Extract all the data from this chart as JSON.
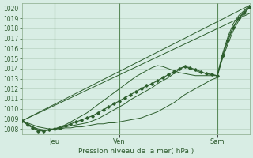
{
  "title": "",
  "xlabel": "Pression niveau de la mer( hPa )",
  "ylabel": "",
  "bg_color": "#d8ede4",
  "grid_color": "#b0ccb8",
  "line_color": "#2d5e2d",
  "ylim": [
    1007.5,
    1020.5
  ],
  "xlim": [
    0,
    84
  ],
  "xtick_positions": [
    12,
    36,
    72
  ],
  "xtick_labels": [
    "Jeu",
    "Ven",
    "Sam"
  ],
  "ytick_positions": [
    1008,
    1009,
    1010,
    1011,
    1012,
    1013,
    1014,
    1015,
    1016,
    1017,
    1018,
    1019,
    1020
  ],
  "line1_straight": {
    "x": [
      0,
      84
    ],
    "y": [
      1008.8,
      1019.5
    ]
  },
  "line2_straight": {
    "x": [
      0,
      84
    ],
    "y": [
      1008.8,
      1020.3
    ]
  },
  "line3_straight": {
    "x": [
      0,
      84
    ],
    "y": [
      1008.8,
      1018.8
    ]
  },
  "line4_straight": {
    "x": [
      0,
      84
    ],
    "y": [
      1008.8,
      1019.0
    ]
  },
  "line_bumpy": {
    "x": [
      0,
      2,
      4,
      6,
      8,
      10,
      12,
      14,
      16,
      18,
      20,
      22,
      24,
      26,
      28,
      30,
      32,
      34,
      36,
      38,
      40,
      42,
      44,
      46,
      48,
      50,
      52,
      54,
      56,
      58,
      60,
      62,
      64,
      66,
      68,
      70,
      72,
      74,
      76,
      78,
      80,
      82,
      84
    ],
    "y": [
      1008.8,
      1008.5,
      1008.2,
      1008.0,
      1007.9,
      1007.9,
      1008.0,
      1008.1,
      1008.2,
      1008.3,
      1008.4,
      1008.5,
      1008.6,
      1008.8,
      1009.0,
      1009.3,
      1009.6,
      1009.9,
      1010.2,
      1010.5,
      1010.9,
      1011.2,
      1011.5,
      1011.8,
      1012.1,
      1012.5,
      1012.8,
      1013.1,
      1013.5,
      1013.9,
      1014.2,
      1014.0,
      1013.8,
      1013.6,
      1013.5,
      1013.4,
      1013.3,
      1015.0,
      1016.5,
      1017.8,
      1018.8,
      1019.5,
      1020.1
    ]
  },
  "line_flat_long": {
    "x": [
      0,
      2,
      4,
      6,
      8,
      10,
      12,
      14,
      16,
      18,
      20,
      22,
      24,
      26,
      28,
      30,
      32,
      34,
      36,
      38,
      40,
      42,
      44,
      46,
      48,
      50,
      52,
      54,
      56,
      58,
      60,
      62,
      64,
      66,
      68,
      70,
      72,
      74,
      76,
      78,
      80,
      82,
      84
    ],
    "y": [
      1008.8,
      1008.6,
      1008.4,
      1008.2,
      1008.1,
      1008.0,
      1008.0,
      1008.0,
      1008.1,
      1008.1,
      1008.2,
      1008.2,
      1008.3,
      1008.4,
      1008.5,
      1008.5,
      1008.6,
      1008.6,
      1008.7,
      1008.8,
      1008.9,
      1009.0,
      1009.1,
      1009.3,
      1009.5,
      1009.7,
      1010.0,
      1010.3,
      1010.6,
      1011.0,
      1011.4,
      1011.7,
      1012.0,
      1012.3,
      1012.6,
      1012.9,
      1013.1,
      1015.2,
      1017.0,
      1018.2,
      1019.1,
      1019.7,
      1020.2
    ]
  },
  "line_steep": {
    "x": [
      0,
      2,
      4,
      6,
      8,
      10,
      12,
      14,
      16,
      18,
      20,
      22,
      24,
      26,
      28,
      30,
      32,
      34,
      36,
      38,
      40,
      42,
      44,
      46,
      48,
      50,
      52,
      54,
      56,
      58,
      60,
      62,
      64,
      66,
      68,
      70,
      72,
      74,
      76,
      78,
      80,
      82,
      84
    ],
    "y": [
      1008.8,
      1008.5,
      1008.2,
      1007.9,
      1007.8,
      1007.9,
      1008.0,
      1008.2,
      1008.4,
      1008.7,
      1009.0,
      1009.3,
      1009.6,
      1010.0,
      1010.4,
      1010.8,
      1011.2,
      1011.6,
      1012.0,
      1012.4,
      1012.8,
      1013.2,
      1013.5,
      1013.8,
      1014.1,
      1014.3,
      1014.2,
      1014.0,
      1013.8,
      1013.6,
      1013.5,
      1013.4,
      1013.3,
      1013.3,
      1013.3,
      1013.3,
      1013.3,
      1015.5,
      1017.2,
      1018.5,
      1019.3,
      1019.8,
      1020.3
    ]
  },
  "line_marker": {
    "x": [
      0,
      2,
      4,
      6,
      8,
      10,
      12,
      14,
      16,
      18,
      20,
      22,
      24,
      26,
      28,
      30,
      32,
      34,
      36,
      38,
      40,
      42,
      44,
      46,
      48,
      50,
      52,
      54,
      56,
      58,
      60,
      62,
      64,
      66,
      68,
      70,
      72,
      74,
      76,
      78,
      80,
      82,
      84
    ],
    "y": [
      1008.8,
      1008.4,
      1008.1,
      1007.8,
      1007.8,
      1007.9,
      1008.0,
      1008.1,
      1008.3,
      1008.5,
      1008.7,
      1008.9,
      1009.1,
      1009.3,
      1009.6,
      1009.9,
      1010.2,
      1010.5,
      1010.8,
      1011.1,
      1011.4,
      1011.7,
      1012.0,
      1012.3,
      1012.5,
      1012.8,
      1013.1,
      1013.4,
      1013.7,
      1014.0,
      1014.2,
      1014.1,
      1013.9,
      1013.7,
      1013.5,
      1013.4,
      1013.3,
      1015.3,
      1016.8,
      1018.1,
      1019.0,
      1019.6,
      1020.1
    ]
  }
}
